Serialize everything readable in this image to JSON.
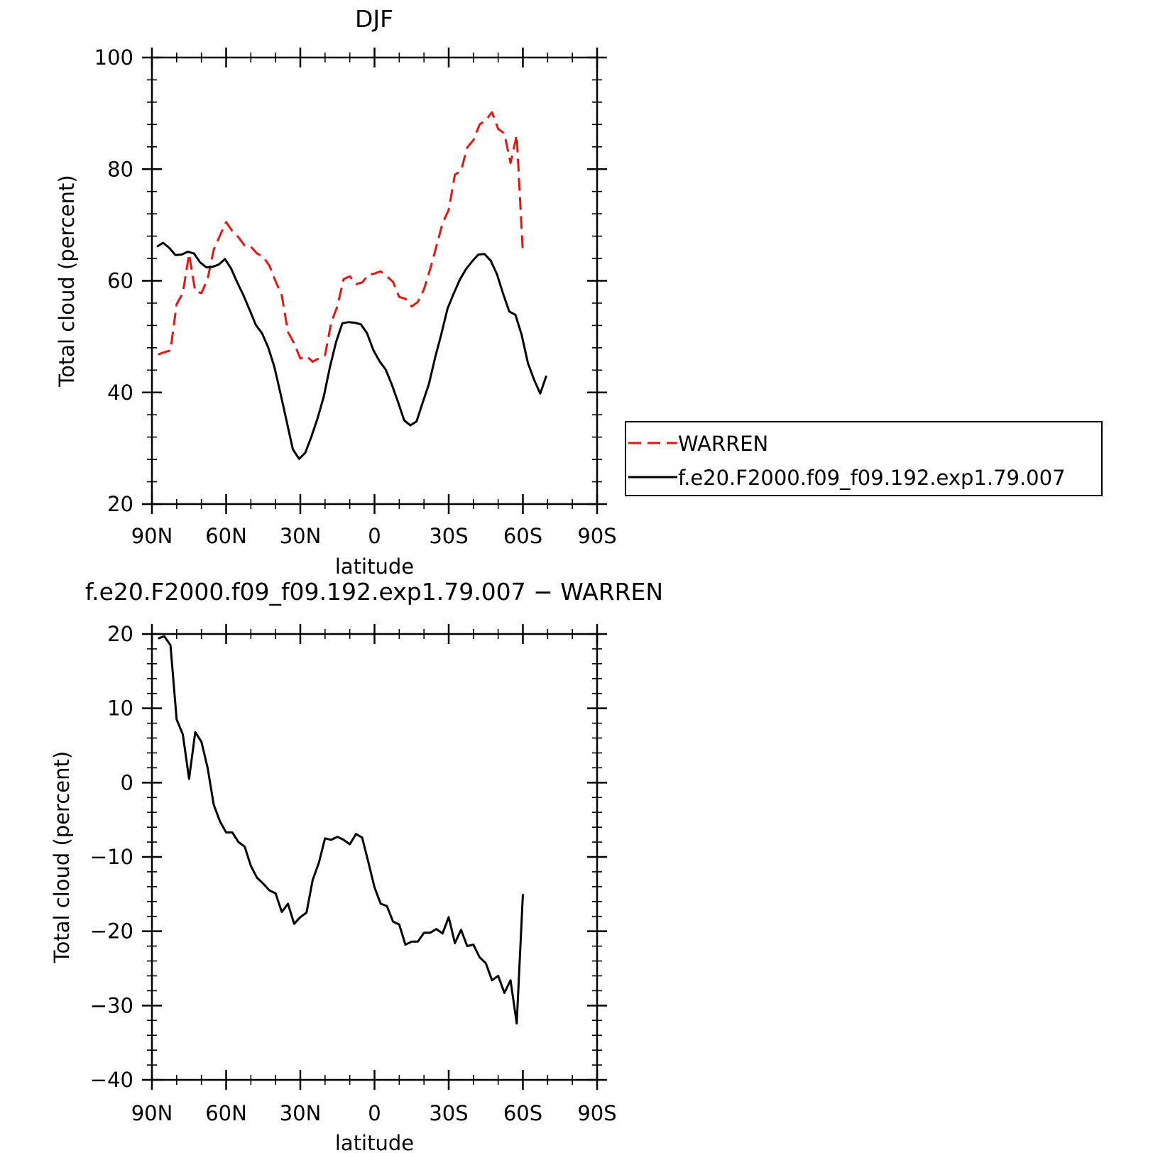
{
  "chart_data": [
    {
      "type": "line",
      "title": "DJF",
      "xlabel": "latitude",
      "ylabel": "Total cloud (percent)",
      "xlim": [
        90,
        -90
      ],
      "ylim": [
        20,
        100
      ],
      "xticks": [
        90,
        60,
        30,
        0,
        -30,
        -60,
        -90
      ],
      "xtick_labels": [
        "90N",
        "60N",
        "30N",
        "0",
        "30S",
        "60S",
        "90S"
      ],
      "yticks": [
        20,
        40,
        60,
        80,
        100
      ],
      "ytick_labels": [
        "20",
        "40",
        "60",
        "80",
        "100"
      ],
      "grid": false,
      "legend_position": "right",
      "series": [
        {
          "name": "WARREN",
          "color": "#e8140f",
          "dash": "dashed",
          "points": [
            [
              87.5,
              46.8
            ],
            [
              85,
              47.2
            ],
            [
              82.5,
              47.5
            ],
            [
              80,
              55.8
            ],
            [
              77.5,
              57.8
            ],
            [
              75,
              64.8
            ],
            [
              72.5,
              58.1
            ],
            [
              70,
              57.8
            ],
            [
              67.5,
              60.3
            ],
            [
              65,
              65.6
            ],
            [
              62.5,
              68.1
            ],
            [
              60,
              70.5
            ],
            [
              57.5,
              68.9
            ],
            [
              55,
              67.8
            ],
            [
              52.5,
              66.3
            ],
            [
              50,
              66.1
            ],
            [
              47.5,
              64.9
            ],
            [
              45,
              64.3
            ],
            [
              42.5,
              62.7
            ],
            [
              40,
              59.9
            ],
            [
              37.5,
              57.4
            ],
            [
              35,
              50.8
            ],
            [
              32.5,
              48.8
            ],
            [
              30,
              46.1
            ],
            [
              27.5,
              46.5
            ],
            [
              25,
              45.5
            ],
            [
              22.5,
              46.1
            ],
            [
              20,
              46.7
            ],
            [
              17.5,
              52.5
            ],
            [
              15,
              55.5
            ],
            [
              12.5,
              60.3
            ],
            [
              10,
              60.8
            ],
            [
              7.5,
              59.4
            ],
            [
              5,
              59.7
            ],
            [
              2.5,
              61.1
            ],
            [
              0,
              61.3
            ],
            [
              -2.5,
              61.7
            ],
            [
              -5,
              60.8
            ],
            [
              -7.5,
              59.8
            ],
            [
              -10,
              57.1
            ],
            [
              -12.5,
              56.8
            ],
            [
              -15,
              55.4
            ],
            [
              -17.5,
              56.2
            ],
            [
              -20,
              58.5
            ],
            [
              -22.5,
              62.1
            ],
            [
              -25,
              66.1
            ],
            [
              -27.5,
              70.3
            ],
            [
              -30,
              72.7
            ],
            [
              -32.5,
              79.0
            ],
            [
              -35,
              79.7
            ],
            [
              -37.5,
              83.9
            ],
            [
              -40,
              85.2
            ],
            [
              -42.5,
              88.0
            ],
            [
              -45,
              88.8
            ],
            [
              -47.5,
              90.2
            ],
            [
              -50,
              87.2
            ],
            [
              -52.5,
              86.4
            ],
            [
              -55,
              81.1
            ],
            [
              -57.5,
              86.1
            ],
            [
              -60,
              64.9
            ]
          ]
        },
        {
          "name": "f.e20.F2000.f09_f09.192.exp1.79.007",
          "color": "#000000",
          "dash": "solid",
          "points": [
            [
              88,
              66.1
            ],
            [
              85.5,
              66.8
            ],
            [
              83,
              65.9
            ],
            [
              80.5,
              64.6
            ],
            [
              78,
              64.7
            ],
            [
              75.5,
              65.2
            ],
            [
              73,
              64.9
            ],
            [
              70.5,
              63.3
            ],
            [
              68,
              62.4
            ],
            [
              65.5,
              62.5
            ],
            [
              63,
              62.9
            ],
            [
              60.5,
              63.9
            ],
            [
              58,
              62.2
            ],
            [
              55.5,
              59.7
            ],
            [
              53,
              57.4
            ],
            [
              50.5,
              54.8
            ],
            [
              48,
              52.1
            ],
            [
              45.5,
              50.6
            ],
            [
              43,
              48.1
            ],
            [
              40.5,
              44.6
            ],
            [
              38,
              39.8
            ],
            [
              35.5,
              34.8
            ],
            [
              33,
              29.8
            ],
            [
              30.5,
              28.1
            ],
            [
              28,
              29.2
            ],
            [
              25.5,
              32.1
            ],
            [
              23,
              35.4
            ],
            [
              20.5,
              39.3
            ],
            [
              18,
              44.6
            ],
            [
              15.5,
              49.1
            ],
            [
              13,
              52.4
            ],
            [
              10.5,
              52.6
            ],
            [
              8,
              52.5
            ],
            [
              5.5,
              52.2
            ],
            [
              3,
              50.6
            ],
            [
              0.5,
              47.6
            ],
            [
              -2,
              45.6
            ],
            [
              -4.5,
              44.1
            ],
            [
              -7,
              41.4
            ],
            [
              -9.5,
              38.3
            ],
            [
              -12,
              35.0
            ],
            [
              -14.5,
              34.1
            ],
            [
              -17,
              34.8
            ],
            [
              -19.5,
              38.2
            ],
            [
              -22,
              41.5
            ],
            [
              -24.5,
              46.2
            ],
            [
              -27,
              50.4
            ],
            [
              -29.5,
              55.0
            ],
            [
              -32,
              57.7
            ],
            [
              -34.5,
              60.2
            ],
            [
              -37,
              62.1
            ],
            [
              -39.5,
              63.5
            ],
            [
              -42,
              64.7
            ],
            [
              -44.5,
              64.8
            ],
            [
              -47,
              63.6
            ],
            [
              -49.5,
              61.2
            ],
            [
              -52,
              57.7
            ],
            [
              -54.5,
              54.5
            ],
            [
              -57,
              53.9
            ],
            [
              -59.5,
              50.3
            ],
            [
              -62,
              45.3
            ],
            [
              -64.5,
              42.3
            ],
            [
              -67,
              39.8
            ],
            [
              -69.5,
              43.0
            ]
          ]
        }
      ]
    },
    {
      "type": "line",
      "title": "f.e20.F2000.f09_f09.192.exp1.79.007 − WARREN",
      "xlabel": "latitude",
      "ylabel": "Total cloud (percent)",
      "xlim": [
        90,
        -90
      ],
      "ylim": [
        -40,
        20
      ],
      "xticks": [
        90,
        60,
        30,
        0,
        -30,
        -60,
        -90
      ],
      "xtick_labels": [
        "90N",
        "60N",
        "30N",
        "0",
        "30S",
        "60S",
        "90S"
      ],
      "yticks": [
        -40,
        -30,
        -20,
        -10,
        0,
        10,
        20
      ],
      "ytick_labels": [
        "−40",
        "−30",
        "−20",
        "−10",
        "0",
        "10",
        "20"
      ],
      "grid": false,
      "zero_line": false,
      "series": [
        {
          "color": "#000000",
          "dash": "solid",
          "points": [
            [
              87.5,
              19.4
            ],
            [
              85,
              19.7
            ],
            [
              82.5,
              18.5
            ],
            [
              80,
              8.5
            ],
            [
              77.5,
              6.5
            ],
            [
              75,
              0.5
            ],
            [
              72.5,
              6.8
            ],
            [
              70,
              5.5
            ],
            [
              67.5,
              2.0
            ],
            [
              65,
              -3.0
            ],
            [
              62.5,
              -5.2
            ],
            [
              60,
              -6.7
            ],
            [
              57.5,
              -6.7
            ],
            [
              55,
              -8.0
            ],
            [
              52.5,
              -8.6
            ],
            [
              50,
              -11.2
            ],
            [
              47.5,
              -12.8
            ],
            [
              45,
              -13.6
            ],
            [
              42.5,
              -14.5
            ],
            [
              40,
              -14.9
            ],
            [
              37.5,
              -17.4
            ],
            [
              35,
              -16.3
            ],
            [
              32.5,
              -19.0
            ],
            [
              30,
              -18.1
            ],
            [
              27.5,
              -17.5
            ],
            [
              25,
              -13.1
            ],
            [
              22.5,
              -10.8
            ],
            [
              20,
              -7.5
            ],
            [
              17.5,
              -7.7
            ],
            [
              15,
              -7.3
            ],
            [
              12.5,
              -7.7
            ],
            [
              10,
              -8.3
            ],
            [
              7.5,
              -6.9
            ],
            [
              5,
              -7.4
            ],
            [
              2.5,
              -10.7
            ],
            [
              0,
              -14.1
            ],
            [
              -2.5,
              -16.3
            ],
            [
              -5,
              -16.6
            ],
            [
              -7.5,
              -18.7
            ],
            [
              -10,
              -19.1
            ],
            [
              -12.5,
              -21.8
            ],
            [
              -15,
              -21.4
            ],
            [
              -17.5,
              -21.4
            ],
            [
              -20,
              -20.2
            ],
            [
              -22.5,
              -20.2
            ],
            [
              -25,
              -19.7
            ],
            [
              -27.5,
              -20.3
            ],
            [
              -30,
              -18.1
            ],
            [
              -32.5,
              -21.6
            ],
            [
              -35,
              -19.8
            ],
            [
              -37.5,
              -22.0
            ],
            [
              -40,
              -21.8
            ],
            [
              -42.5,
              -23.5
            ],
            [
              -45,
              -24.3
            ],
            [
              -47.5,
              -26.6
            ],
            [
              -50,
              -26.0
            ],
            [
              -52.5,
              -28.3
            ],
            [
              -55,
              -26.6
            ],
            [
              -57.5,
              -32.4
            ],
            [
              -60,
              -15.0
            ]
          ]
        }
      ]
    }
  ]
}
